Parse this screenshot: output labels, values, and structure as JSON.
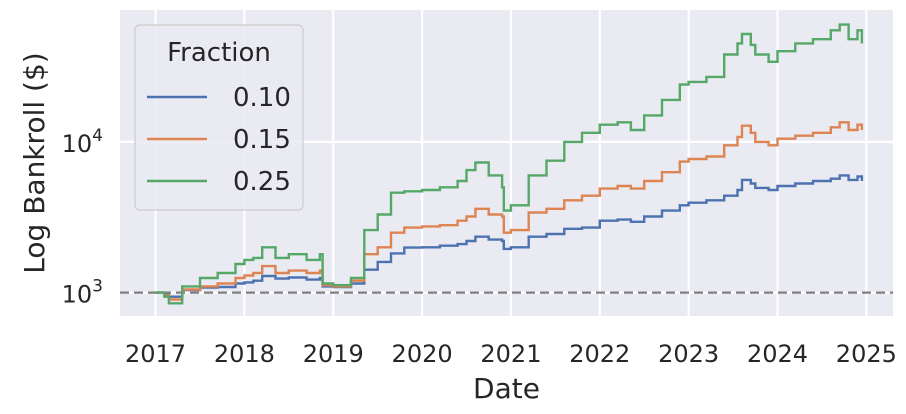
{
  "chart_data": {
    "type": "line",
    "title": "",
    "xlabel": "Date",
    "ylabel": "Log Bankroll ($)",
    "yscale": "log",
    "xlim": [
      2016.6,
      2025.3
    ],
    "ylim": [
      700,
      75000
    ],
    "grid": true,
    "legend_title": "Fraction",
    "legend_position": "top-left",
    "x_ticks": [
      {
        "value": 2017,
        "label": "2017"
      },
      {
        "value": 2018,
        "label": "2018"
      },
      {
        "value": 2019,
        "label": "2019"
      },
      {
        "value": 2020,
        "label": "2020"
      },
      {
        "value": 2021,
        "label": "2021"
      },
      {
        "value": 2022,
        "label": "2022"
      },
      {
        "value": 2023,
        "label": "2023"
      },
      {
        "value": 2024,
        "label": "2024"
      },
      {
        "value": 2025,
        "label": "2025"
      }
    ],
    "y_ticks": [
      {
        "value": 1000,
        "base": "10",
        "exp": "3"
      },
      {
        "value": 10000,
        "base": "10",
        "exp": "4"
      }
    ],
    "reference_line": {
      "y": 1000,
      "style": "dashed",
      "color": "#808080"
    },
    "series": [
      {
        "name": "0.10",
        "color": "#4c72b0",
        "points": [
          [
            2017.0,
            1000
          ],
          [
            2017.1,
            970
          ],
          [
            2017.15,
            940
          ],
          [
            2017.3,
            1040
          ],
          [
            2017.5,
            1080
          ],
          [
            2017.7,
            1090
          ],
          [
            2017.9,
            1150
          ],
          [
            2018.0,
            1170
          ],
          [
            2018.1,
            1200
          ],
          [
            2018.2,
            1290
          ],
          [
            2018.35,
            1240
          ],
          [
            2018.5,
            1260
          ],
          [
            2018.7,
            1220
          ],
          [
            2018.85,
            1250
          ],
          [
            2018.88,
            1100
          ],
          [
            2019.0,
            1090
          ],
          [
            2019.2,
            1150
          ],
          [
            2019.35,
            1420
          ],
          [
            2019.5,
            1600
          ],
          [
            2019.65,
            1820
          ],
          [
            2019.8,
            1990
          ],
          [
            2020.0,
            2000
          ],
          [
            2020.2,
            2050
          ],
          [
            2020.4,
            2100
          ],
          [
            2020.5,
            2200
          ],
          [
            2020.6,
            2350
          ],
          [
            2020.75,
            2250
          ],
          [
            2020.9,
            2200
          ],
          [
            2020.92,
            1950
          ],
          [
            2021.0,
            2000
          ],
          [
            2021.2,
            2350
          ],
          [
            2021.4,
            2450
          ],
          [
            2021.6,
            2650
          ],
          [
            2021.8,
            2700
          ],
          [
            2022.0,
            3000
          ],
          [
            2022.2,
            3050
          ],
          [
            2022.35,
            2950
          ],
          [
            2022.5,
            3200
          ],
          [
            2022.7,
            3500
          ],
          [
            2022.9,
            3800
          ],
          [
            2023.0,
            3950
          ],
          [
            2023.2,
            4100
          ],
          [
            2023.4,
            4400
          ],
          [
            2023.55,
            4800
          ],
          [
            2023.6,
            5600
          ],
          [
            2023.7,
            5300
          ],
          [
            2023.75,
            4950
          ],
          [
            2023.9,
            4800
          ],
          [
            2024.0,
            5100
          ],
          [
            2024.2,
            5300
          ],
          [
            2024.4,
            5500
          ],
          [
            2024.6,
            5700
          ],
          [
            2024.7,
            6000
          ],
          [
            2024.8,
            5600
          ],
          [
            2024.9,
            5900
          ],
          [
            2024.95,
            5500
          ]
        ]
      },
      {
        "name": "0.15",
        "color": "#dd8452",
        "points": [
          [
            2017.0,
            1000
          ],
          [
            2017.1,
            960
          ],
          [
            2017.15,
            900
          ],
          [
            2017.3,
            1050
          ],
          [
            2017.5,
            1100
          ],
          [
            2017.7,
            1150
          ],
          [
            2017.9,
            1250
          ],
          [
            2018.0,
            1300
          ],
          [
            2018.1,
            1350
          ],
          [
            2018.2,
            1500
          ],
          [
            2018.35,
            1350
          ],
          [
            2018.5,
            1400
          ],
          [
            2018.7,
            1350
          ],
          [
            2018.85,
            1400
          ],
          [
            2018.88,
            1120
          ],
          [
            2019.0,
            1100
          ],
          [
            2019.2,
            1200
          ],
          [
            2019.35,
            1800
          ],
          [
            2019.5,
            2000
          ],
          [
            2019.65,
            2500
          ],
          [
            2019.8,
            2700
          ],
          [
            2020.0,
            2750
          ],
          [
            2020.2,
            2800
          ],
          [
            2020.4,
            3000
          ],
          [
            2020.5,
            3200
          ],
          [
            2020.6,
            3600
          ],
          [
            2020.75,
            3300
          ],
          [
            2020.9,
            3200
          ],
          [
            2020.92,
            2500
          ],
          [
            2021.0,
            2600
          ],
          [
            2021.2,
            3400
          ],
          [
            2021.4,
            3600
          ],
          [
            2021.6,
            4100
          ],
          [
            2021.8,
            4400
          ],
          [
            2022.0,
            4900
          ],
          [
            2022.2,
            5100
          ],
          [
            2022.35,
            4900
          ],
          [
            2022.5,
            5500
          ],
          [
            2022.7,
            6300
          ],
          [
            2022.9,
            7400
          ],
          [
            2023.0,
            7700
          ],
          [
            2023.2,
            8000
          ],
          [
            2023.4,
            9500
          ],
          [
            2023.55,
            10800
          ],
          [
            2023.6,
            12800
          ],
          [
            2023.7,
            11500
          ],
          [
            2023.75,
            10000
          ],
          [
            2023.9,
            9500
          ],
          [
            2024.0,
            10500
          ],
          [
            2024.2,
            11000
          ],
          [
            2024.4,
            11500
          ],
          [
            2024.6,
            12500
          ],
          [
            2024.7,
            13500
          ],
          [
            2024.8,
            12000
          ],
          [
            2024.9,
            13000
          ],
          [
            2024.95,
            12000
          ]
        ]
      },
      {
        "name": "0.25",
        "color": "#55a868",
        "points": [
          [
            2017.0,
            1000
          ],
          [
            2017.1,
            940
          ],
          [
            2017.15,
            850
          ],
          [
            2017.3,
            1100
          ],
          [
            2017.5,
            1250
          ],
          [
            2017.7,
            1350
          ],
          [
            2017.9,
            1550
          ],
          [
            2018.0,
            1650
          ],
          [
            2018.1,
            1700
          ],
          [
            2018.2,
            2000
          ],
          [
            2018.35,
            1700
          ],
          [
            2018.5,
            1800
          ],
          [
            2018.7,
            1650
          ],
          [
            2018.85,
            1800
          ],
          [
            2018.88,
            1150
          ],
          [
            2019.0,
            1120
          ],
          [
            2019.2,
            1250
          ],
          [
            2019.35,
            2600
          ],
          [
            2019.5,
            3300
          ],
          [
            2019.65,
            4600
          ],
          [
            2019.8,
            4700
          ],
          [
            2020.0,
            4800
          ],
          [
            2020.2,
            5000
          ],
          [
            2020.4,
            5500
          ],
          [
            2020.5,
            6500
          ],
          [
            2020.6,
            7300
          ],
          [
            2020.75,
            6000
          ],
          [
            2020.9,
            5000
          ],
          [
            2020.92,
            3500
          ],
          [
            2021.0,
            3800
          ],
          [
            2021.2,
            6000
          ],
          [
            2021.4,
            7500
          ],
          [
            2021.6,
            10000
          ],
          [
            2021.8,
            11500
          ],
          [
            2022.0,
            13000
          ],
          [
            2022.2,
            13500
          ],
          [
            2022.35,
            12000
          ],
          [
            2022.5,
            15000
          ],
          [
            2022.7,
            19000
          ],
          [
            2022.9,
            24000
          ],
          [
            2023.0,
            25000
          ],
          [
            2023.2,
            27000
          ],
          [
            2023.4,
            38000
          ],
          [
            2023.55,
            45000
          ],
          [
            2023.6,
            52000
          ],
          [
            2023.7,
            44000
          ],
          [
            2023.75,
            38000
          ],
          [
            2023.9,
            34000
          ],
          [
            2024.0,
            40000
          ],
          [
            2024.2,
            45000
          ],
          [
            2024.4,
            48000
          ],
          [
            2024.6,
            55000
          ],
          [
            2024.7,
            60000
          ],
          [
            2024.8,
            48000
          ],
          [
            2024.9,
            55000
          ],
          [
            2024.95,
            45000
          ]
        ]
      }
    ]
  }
}
